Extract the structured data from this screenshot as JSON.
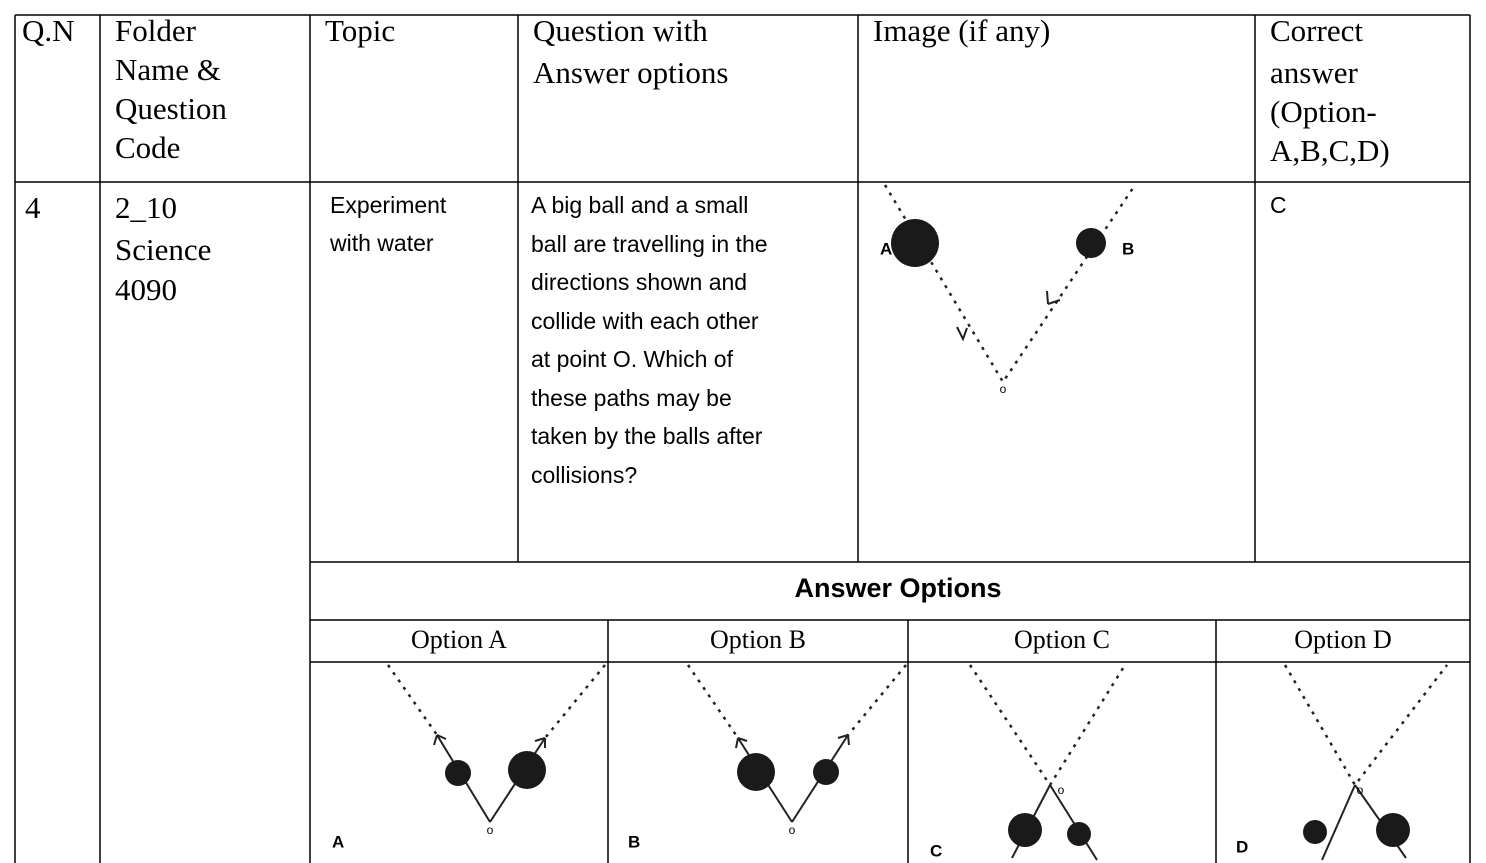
{
  "header": {
    "qn": "Q.N",
    "folder": [
      "Folder",
      "Name &",
      "Question",
      "Code"
    ],
    "topic": "Topic",
    "question": [
      "Question with",
      "Answer options"
    ],
    "image": "Image (if any)",
    "correct": [
      "Correct",
      "answer",
      "(Option-",
      "A,B,C,D)"
    ]
  },
  "row": {
    "qn": "4",
    "folder": [
      "2_10",
      "Science",
      "4090"
    ],
    "topic": [
      "Experiment",
      "with water"
    ],
    "question": [
      "A big ball and a small",
      "ball are travelling in the",
      "directions shown and",
      "collide with each other",
      "at point O. Which of",
      "these paths may be",
      "taken by the balls after",
      "collisions?"
    ],
    "image_labels": [
      "A",
      "B",
      "o"
    ],
    "correct": "C"
  },
  "answer_options": {
    "title": "Answer Options",
    "options": [
      {
        "title": "Option A",
        "image_label": "A",
        "point_label": "o"
      },
      {
        "title": "Option B",
        "image_label": "B",
        "point_label": "o"
      },
      {
        "title": "Option C",
        "image_label": "C",
        "point_label": "o"
      },
      {
        "title": "Option D",
        "image_label": "D",
        "point_label": "o"
      }
    ]
  }
}
